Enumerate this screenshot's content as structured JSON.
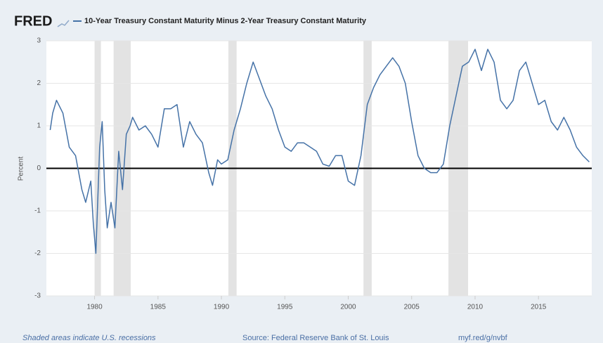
{
  "chart_data": {
    "type": "line",
    "logo": "FRED",
    "title": "10-Year Treasury Constant Maturity Minus 2-Year Treasury Constant Maturity",
    "y_label": "Percent",
    "note": "Shaded areas indicate U.S. recessions",
    "source": "Source: Federal Reserve Bank of St. Louis",
    "link": "myf.red/g/nvbf",
    "x": [
      1976.5,
      1976.7,
      1977,
      1977.5,
      1978,
      1978.5,
      1979,
      1979.3,
      1979.7,
      1979.9,
      1980.1,
      1980.4,
      1980.6,
      1980.8,
      1981,
      1981.3,
      1981.6,
      1981.9,
      1982.2,
      1982.5,
      1982.8,
      1983,
      1983.5,
      1984,
      1984.5,
      1985,
      1985.5,
      1986,
      1986.5,
      1987,
      1987.5,
      1988,
      1988.5,
      1989,
      1989.3,
      1989.7,
      1990,
      1990.5,
      1991,
      1991.5,
      1992,
      1992.5,
      1993,
      1993.5,
      1994,
      1994.5,
      1995,
      1995.5,
      1996,
      1996.5,
      1997,
      1997.5,
      1998,
      1998.5,
      1999,
      1999.5,
      2000,
      2000.5,
      2001,
      2001.5,
      2002,
      2002.5,
      2003,
      2003.5,
      2004,
      2004.5,
      2005,
      2005.5,
      2006,
      2006.5,
      2007,
      2007.5,
      2008,
      2008.5,
      2009,
      2009.5,
      2010,
      2010.5,
      2011,
      2011.5,
      2012,
      2012.5,
      2013,
      2013.5,
      2014,
      2014.5,
      2015,
      2015.5,
      2016,
      2016.5,
      2017,
      2017.5,
      2018,
      2018.5,
      2019
    ],
    "series": [
      {
        "name": "10-Year Treasury Constant Maturity Minus 2-Year Treasury Constant Maturity",
        "color": "#4572a7",
        "values": [
          0.9,
          1.3,
          1.6,
          1.3,
          0.5,
          0.3,
          -0.5,
          -0.8,
          -0.3,
          -1.3,
          -2.0,
          0.5,
          1.1,
          -0.5,
          -1.4,
          -0.8,
          -1.4,
          0.4,
          -0.5,
          0.8,
          1.0,
          1.2,
          0.9,
          1.0,
          0.8,
          0.5,
          1.4,
          1.4,
          1.5,
          0.5,
          1.1,
          0.8,
          0.6,
          -0.1,
          -0.4,
          0.2,
          0.1,
          0.2,
          0.9,
          1.4,
          2.0,
          2.5,
          2.1,
          1.7,
          1.4,
          0.9,
          0.5,
          0.4,
          0.6,
          0.6,
          0.5,
          0.4,
          0.1,
          0.05,
          0.3,
          0.3,
          -0.3,
          -0.4,
          0.3,
          1.5,
          1.9,
          2.2,
          2.4,
          2.6,
          2.4,
          2.0,
          1.1,
          0.3,
          0.0,
          -0.1,
          -0.1,
          0.1,
          1.0,
          1.7,
          2.4,
          2.5,
          2.8,
          2.3,
          2.8,
          2.5,
          1.6,
          1.4,
          1.6,
          2.3,
          2.5,
          2.0,
          1.5,
          1.6,
          1.1,
          0.9,
          1.2,
          0.9,
          0.5,
          0.3,
          0.15
        ]
      }
    ],
    "recessions": [
      [
        1980.0,
        1980.5
      ],
      [
        1981.5,
        1982.85
      ],
      [
        1990.55,
        1991.2
      ],
      [
        2001.2,
        2001.85
      ],
      [
        2007.9,
        2009.45
      ]
    ],
    "xlim": [
      1976.2,
      2019.2
    ],
    "ylim": [
      -3,
      3
    ],
    "xticks": [
      1980,
      1985,
      1990,
      1995,
      2000,
      2005,
      2010,
      2015
    ],
    "yticks": [
      -3,
      -2,
      -1,
      0,
      1,
      2,
      3
    ],
    "grid": true
  }
}
